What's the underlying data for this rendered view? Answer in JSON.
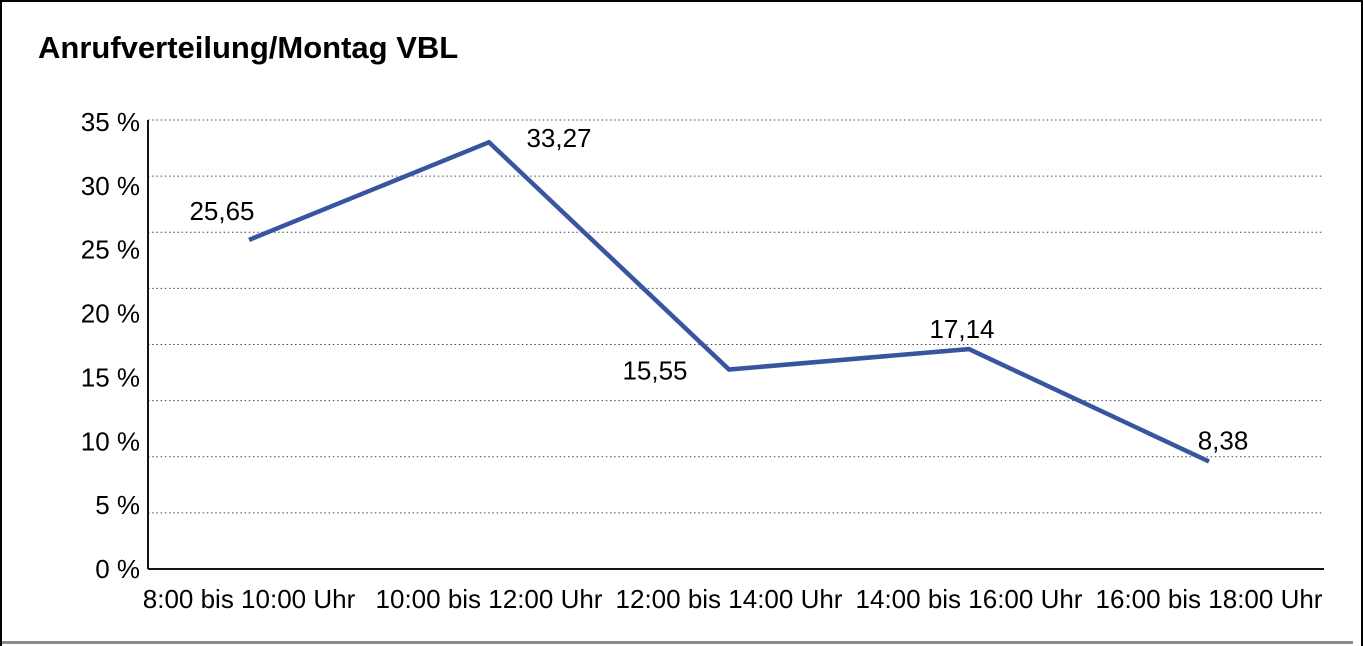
{
  "chart_data": {
    "type": "line",
    "title": "Anrufverteilung/Montag VBL",
    "categories": [
      "8:00 bis 10:00 Uhr",
      "10:00 bis 12:00 Uhr",
      "12:00 bis 14:00 Uhr",
      "14:00 bis 16:00 Uhr",
      "16:00 bis 18:00 Uhr"
    ],
    "values": [
      25.65,
      33.27,
      15.55,
      17.14,
      8.38
    ],
    "point_labels": [
      "25,65",
      "33,27",
      "15,55",
      "17,14",
      "8,38"
    ],
    "y_tick_labels": [
      "0 %",
      "5 %",
      "10 %",
      "15 %",
      "20 %",
      "25 %",
      "30 %",
      "35 %"
    ],
    "ylim": [
      0,
      35
    ],
    "xlabel": "",
    "ylabel": "",
    "legend": "none",
    "grid": "horizontal-dotted",
    "grid_divisions": 8,
    "colors": {
      "line": "#38559F",
      "text": "#000000",
      "gridline": "#474747",
      "axis": "#141414",
      "frame_border": "#000000",
      "bottom_rule": "#8c8c8c",
      "background": "#ffffff"
    }
  }
}
